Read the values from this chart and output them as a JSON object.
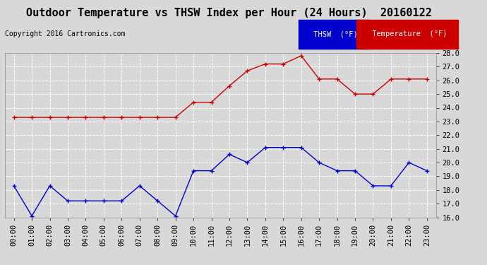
{
  "title": "Outdoor Temperature vs THSW Index per Hour (24 Hours)  20160122",
  "copyright": "Copyright 2016 Cartronics.com",
  "hours": [
    "00:00",
    "01:00",
    "02:00",
    "03:00",
    "04:00",
    "05:00",
    "06:00",
    "07:00",
    "08:00",
    "09:00",
    "10:00",
    "11:00",
    "12:00",
    "13:00",
    "14:00",
    "15:00",
    "16:00",
    "17:00",
    "18:00",
    "19:00",
    "20:00",
    "21:00",
    "22:00",
    "23:00"
  ],
  "temperature": [
    23.3,
    23.3,
    23.3,
    23.3,
    23.3,
    23.3,
    23.3,
    23.3,
    23.3,
    23.3,
    24.4,
    24.4,
    25.6,
    26.7,
    27.2,
    27.2,
    27.8,
    26.1,
    26.1,
    25.0,
    25.0,
    26.1,
    26.1,
    26.1
  ],
  "thsw": [
    18.3,
    16.1,
    18.3,
    17.2,
    17.2,
    17.2,
    17.2,
    18.3,
    17.2,
    16.1,
    19.4,
    19.4,
    20.6,
    20.0,
    21.1,
    21.1,
    21.1,
    20.0,
    19.4,
    19.4,
    18.3,
    18.3,
    20.0,
    19.4
  ],
  "temp_color": "#cc0000",
  "thsw_color": "#0000cc",
  "ylim_min": 16.0,
  "ylim_max": 28.0,
  "yticks": [
    16.0,
    17.0,
    18.0,
    19.0,
    20.0,
    21.0,
    22.0,
    23.0,
    24.0,
    25.0,
    26.0,
    27.0,
    28.0
  ],
  "bg_color": "#d8d8d8",
  "plot_bg_color": "#d8d8d8",
  "grid_color": "#ffffff",
  "title_fontsize": 11,
  "copyright_fontsize": 7,
  "legend_thsw_bg": "#0000cc",
  "legend_temp_bg": "#cc0000",
  "legend_text_color": "#ffffff",
  "tick_fontsize": 7.5,
  "axis_label_color": "#000000"
}
